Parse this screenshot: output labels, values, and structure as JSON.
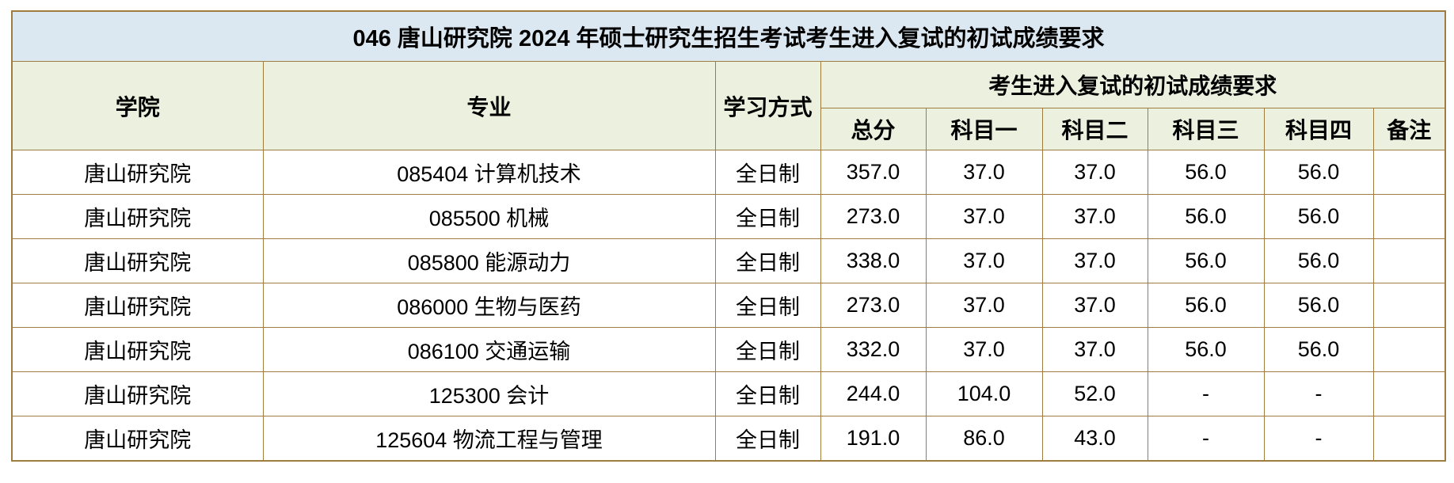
{
  "page": {
    "background": "#ffffff"
  },
  "colors": {
    "title_bg": "#dbe8f1",
    "header_bg": "#ecf1df",
    "border": "#9e7d3e",
    "data_bg": "#ffffff",
    "text": "#000000"
  },
  "table": {
    "title": "046 唐山研究院 2024 年硕士研究生招生考试考生进入复试的初试成绩要求",
    "group_header": "考生进入复试的初试成绩要求",
    "header": {
      "college": "学院",
      "major": "专业",
      "study_mode": "学习方式",
      "score_columns": [
        "总分",
        "科目一",
        "科目二",
        "科目三",
        "科目四",
        "备注"
      ]
    },
    "column_keys": [
      "college",
      "major",
      "study-mode",
      "total-score",
      "subject1",
      "subject2",
      "subject3",
      "subject4",
      "note"
    ],
    "rows": [
      [
        "唐山研究院",
        "085404 计算机技术",
        "全日制",
        "357.0",
        "37.0",
        "37.0",
        "56.0",
        "56.0",
        ""
      ],
      [
        "唐山研究院",
        "085500 机械",
        "全日制",
        "273.0",
        "37.0",
        "37.0",
        "56.0",
        "56.0",
        ""
      ],
      [
        "唐山研究院",
        "085800 能源动力",
        "全日制",
        "338.0",
        "37.0",
        "37.0",
        "56.0",
        "56.0",
        ""
      ],
      [
        "唐山研究院",
        "086000 生物与医药",
        "全日制",
        "273.0",
        "37.0",
        "37.0",
        "56.0",
        "56.0",
        ""
      ],
      [
        "唐山研究院",
        "086100 交通运输",
        "全日制",
        "332.0",
        "37.0",
        "37.0",
        "56.0",
        "56.0",
        ""
      ],
      [
        "唐山研究院",
        "125300 会计",
        "全日制",
        "244.0",
        "104.0",
        "52.0",
        "-",
        "-",
        ""
      ],
      [
        "唐山研究院",
        "125604 物流工程与管理",
        "全日制",
        "191.0",
        "86.0",
        "43.0",
        "-",
        "-",
        ""
      ]
    ]
  }
}
